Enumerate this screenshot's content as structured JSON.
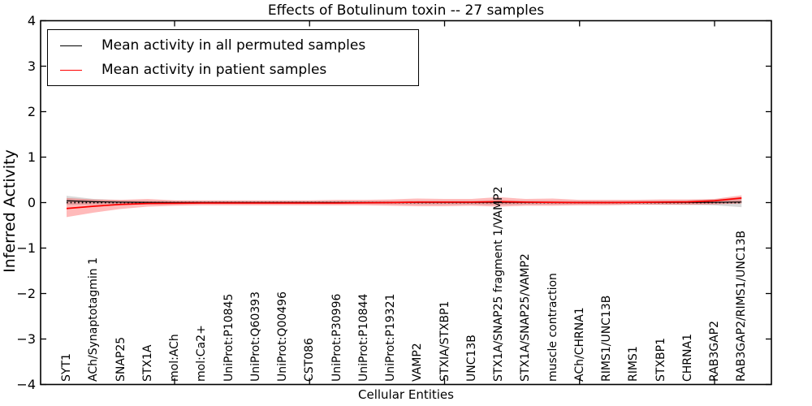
{
  "chart_data": {
    "type": "line",
    "title": "Effects of Botulinum toxin -- 27 samples",
    "xlabel": "Cellular Entities",
    "ylabel": "Inferred Activity",
    "ylim": [
      -4,
      4
    ],
    "ytick_values": [
      4,
      3,
      2,
      1,
      0,
      -1,
      -2,
      -3,
      -4
    ],
    "ytick_labels": [
      "4",
      "3",
      "2",
      "1",
      "0",
      "−1",
      "−2",
      "−3",
      "−4"
    ],
    "xticks_numeric": [
      5,
      10,
      15,
      20,
      25
    ],
    "grid": false,
    "legend_position": "upper left",
    "zero_line": {
      "style": "dotted",
      "color": "#000000",
      "y": 0
    },
    "categories": [
      "SYT1",
      "ACh/Synaptotagmin 1",
      "SNAP25",
      "STX1A",
      "mol:ACh",
      "mol:Ca2+",
      "UniProt:P10845",
      "UniProt:Q60393",
      "UniProt:Q00496",
      "CST086",
      "UniProt:P30996",
      "UniProt:P10844",
      "UniProt:P19321",
      "VAMP2",
      "STXIA/STXBP1",
      "UNC13B",
      "STX1A/SNAP25 fragment 1/VAMP2",
      "STX1A/SNAP25/VAMP2",
      "muscle contraction",
      "ACh/CHRNA1",
      "RIMS1/UNC13B",
      "RIMS1",
      "STXBP1",
      "CHRNA1",
      "RAB3GAP2",
      "RAB3GAP2/RIMS1/UNC13B"
    ],
    "series": [
      {
        "name": "Mean activity in all permuted samples",
        "color": "#000000",
        "band_fill": "rgba(0,0,0,0.15)",
        "values": [
          0.04,
          0.02,
          0.01,
          0.005,
          0.003,
          0.002,
          0.002,
          0.002,
          0.002,
          0.002,
          0.002,
          0.002,
          0.002,
          0.003,
          0.003,
          0.003,
          0.004,
          0.003,
          0.003,
          0.002,
          0.002,
          0.002,
          0.003,
          0.004,
          0.006,
          0.012
        ],
        "band_hi": [
          0.15,
          0.08,
          0.05,
          0.04,
          0.035,
          0.03,
          0.03,
          0.03,
          0.03,
          0.03,
          0.03,
          0.03,
          0.035,
          0.04,
          0.04,
          0.04,
          0.05,
          0.04,
          0.04,
          0.035,
          0.035,
          0.04,
          0.045,
          0.05,
          0.07,
          0.12
        ],
        "band_lo": [
          -0.05,
          -0.04,
          -0.035,
          -0.03,
          -0.03,
          -0.03,
          -0.03,
          -0.03,
          -0.03,
          -0.03,
          -0.03,
          -0.03,
          -0.035,
          -0.04,
          -0.04,
          -0.04,
          -0.05,
          -0.04,
          -0.04,
          -0.035,
          -0.035,
          -0.04,
          -0.045,
          -0.05,
          -0.06,
          -0.1
        ]
      },
      {
        "name": "Mean activity in patient samples",
        "color": "#ff0000",
        "band_fill": "rgba(255,0,0,0.27)",
        "values": [
          -0.13,
          -0.08,
          -0.04,
          -0.02,
          -0.015,
          -0.01,
          -0.01,
          -0.01,
          -0.01,
          -0.01,
          -0.01,
          -0.005,
          0.0,
          0.01,
          0.01,
          0.01,
          0.02,
          0.01,
          0.005,
          0.0,
          0.0,
          0.005,
          0.01,
          0.015,
          0.04,
          0.1
        ],
        "band_hi": [
          0.1,
          0.07,
          0.06,
          0.08,
          0.05,
          0.05,
          0.05,
          0.05,
          0.05,
          0.05,
          0.06,
          0.06,
          0.07,
          0.09,
          0.08,
          0.08,
          0.12,
          0.08,
          0.09,
          0.06,
          0.06,
          0.06,
          0.07,
          0.07,
          0.08,
          0.16
        ],
        "band_lo": [
          -0.32,
          -0.22,
          -0.14,
          -0.09,
          -0.07,
          -0.06,
          -0.06,
          -0.06,
          -0.06,
          -0.06,
          -0.06,
          -0.06,
          -0.07,
          -0.08,
          -0.08,
          -0.07,
          -0.09,
          -0.07,
          -0.07,
          -0.06,
          -0.06,
          -0.05,
          -0.05,
          -0.05,
          -0.04,
          -0.02
        ]
      }
    ]
  },
  "colors": {
    "background": "#ffffff",
    "spine": "#000000",
    "permuted_line": "#000000",
    "patient_line": "#ff0000"
  }
}
